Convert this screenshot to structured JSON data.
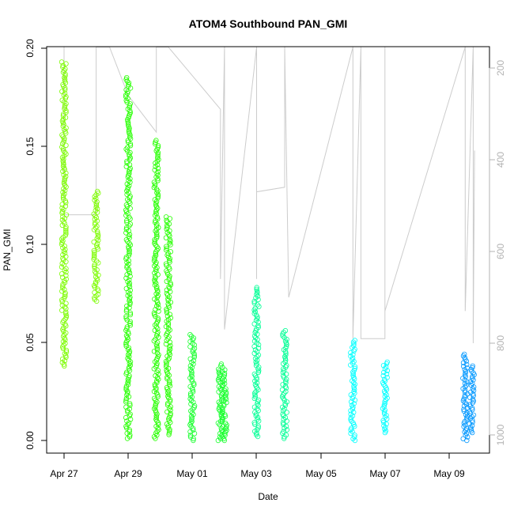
{
  "chart_data": {
    "type": "scatter",
    "title": "ATOM4 Southbound PAN_GMI",
    "xlabel": "Date",
    "ylabel": "PAN_GMI",
    "x_ticks": [
      "Apr 27",
      "Apr 29",
      "May 01",
      "May 03",
      "May 05",
      "May 07",
      "May 09"
    ],
    "y_ticks": [
      "0.00",
      "0.05",
      "0.10",
      "0.15",
      "0.20"
    ],
    "y_ticks_right": [
      "200",
      "400",
      "600",
      "800",
      "1000"
    ],
    "xlim": [
      "2016-04-26T18:00",
      "2016-05-10T07:00"
    ],
    "ylim": [
      -0.008,
      0.2
    ],
    "ylim_right": [
      1050,
      150
    ],
    "grid": false,
    "marker": "open-circle",
    "series": [
      {
        "values": [
          {
            "x": "2016-04-27T00:00",
            "y_min": 0.038,
            "y_max": 0.193
          },
          {
            "x": "2016-04-28T00:00",
            "y_min": 0.071,
            "y_max": 0.127
          }
        ],
        "color": "#7cfc00"
      },
      {
        "values": [
          {
            "x": "2016-04-29T00:00",
            "y_min": 0.001,
            "y_max": 0.185
          },
          {
            "x": "2016-04-29T21:00",
            "y_min": 0.001,
            "y_max": 0.153
          },
          {
            "x": "2016-04-30T06:00",
            "y_min": 0.003,
            "y_max": 0.114
          }
        ],
        "color": "#26ff00"
      },
      {
        "values": [
          {
            "x": "2016-05-01T00:00",
            "y_min": 0.0,
            "y_max": 0.054
          },
          {
            "x": "2016-05-01T21:00",
            "y_min": 0.0,
            "y_max": 0.039
          },
          {
            "x": "2016-05-02T00:00",
            "y_min": 0.0,
            "y_max": 0.036
          }
        ],
        "color": "#19ff2e"
      },
      {
        "values": [
          {
            "x": "2016-05-03T00:00",
            "y_min": 0.002,
            "y_max": 0.078
          },
          {
            "x": "2016-05-03T21:00",
            "y_min": 0.001,
            "y_max": 0.056
          }
        ],
        "color": "#00ff95"
      },
      {
        "values": [
          {
            "x": "2016-05-06T00:00",
            "y_min": 0.0,
            "y_max": 0.051
          },
          {
            "x": "2016-05-07T00:00",
            "y_min": 0.004,
            "y_max": 0.04
          }
        ],
        "color": "#00ffff"
      },
      {
        "values": [
          {
            "x": "2016-05-09T12:00",
            "y_min": 0.0,
            "y_max": 0.044
          },
          {
            "x": "2016-05-09T17:00",
            "y_min": 0.004,
            "y_max": 0.038
          }
        ],
        "color": "#0097ff"
      }
    ],
    "depth_trace": {
      "color": "#cccccc",
      "description_axis": "right",
      "values": [
        {
          "x": "2016-04-27T00:00",
          "y": 150
        },
        {
          "x": "2016-04-27T00:00",
          "y": 520
        },
        {
          "x": "2016-04-28T00:00",
          "y": 520
        },
        {
          "x": "2016-04-28T00:00",
          "y": 150
        },
        {
          "x": "2016-04-28T10:00",
          "y": 150
        },
        {
          "x": "2016-04-29T00:00",
          "y": 260
        },
        {
          "x": "2016-04-29T21:00",
          "y": 340
        },
        {
          "x": "2016-04-29T21:00",
          "y": 150
        },
        {
          "x": "2016-04-30T06:00",
          "y": 150
        },
        {
          "x": "2016-05-01T21:00",
          "y": 290
        },
        {
          "x": "2016-05-01T21:00",
          "y": 660
        },
        {
          "x": "2016-05-02T00:00",
          "y": 150
        },
        {
          "x": "2016-05-02T00:00",
          "y": 770
        },
        {
          "x": "2016-05-03T00:00",
          "y": 150
        },
        {
          "x": "2016-05-03T00:00",
          "y": 660
        },
        {
          "x": "2016-05-03T00:00",
          "y": 470
        },
        {
          "x": "2016-05-03T21:00",
          "y": 460
        },
        {
          "x": "2016-05-03T21:00",
          "y": 150
        },
        {
          "x": "2016-05-04T00:00",
          "y": 700
        },
        {
          "x": "2016-05-06T00:00",
          "y": 150
        },
        {
          "x": "2016-05-06T00:00",
          "y": 790
        },
        {
          "x": "2016-05-06T06:00",
          "y": 150
        },
        {
          "x": "2016-05-06T06:00",
          "y": 790
        },
        {
          "x": "2016-05-07T00:00",
          "y": 790
        },
        {
          "x": "2016-05-07T00:00",
          "y": 150
        },
        {
          "x": "2016-05-07T00:00",
          "y": 730
        },
        {
          "x": "2016-05-09T12:00",
          "y": 150
        },
        {
          "x": "2016-05-09T12:00",
          "y": 730
        },
        {
          "x": "2016-05-09T18:00",
          "y": 150
        },
        {
          "x": "2016-05-09T18:00",
          "y": 800
        },
        {
          "x": "2016-05-09T19:00",
          "y": 380
        }
      ]
    }
  }
}
